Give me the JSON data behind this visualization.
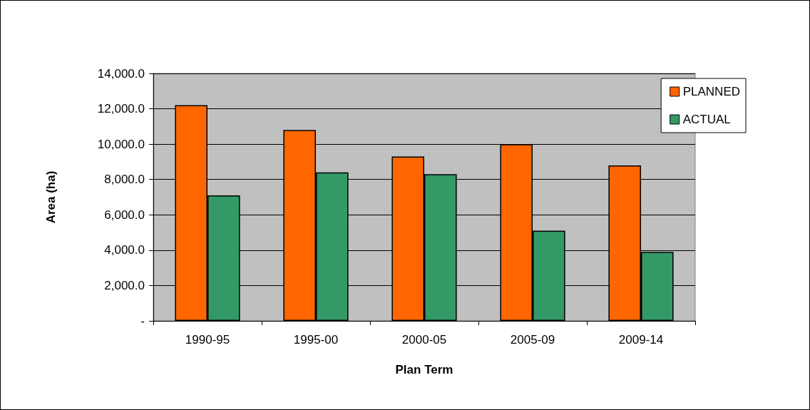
{
  "chart_data": {
    "type": "bar",
    "xlabel": "Plan Term",
    "ylabel": "Area (ha)",
    "categories": [
      "1990-95",
      "1995-00",
      "2000-05",
      "2005-09",
      "2009-14"
    ],
    "series": [
      {
        "name": "PLANNED",
        "color": "#ff6600",
        "values": [
          12200,
          10800,
          9300,
          10000,
          8800
        ]
      },
      {
        "name": "ACTUAL",
        "color": "#339966",
        "values": [
          7100,
          8400,
          8300,
          5100,
          3900
        ]
      }
    ],
    "ylim": [
      0,
      14000
    ],
    "yticks": [
      {
        "value": 0,
        "label": "-"
      },
      {
        "value": 2000,
        "label": "2,000.0"
      },
      {
        "value": 4000,
        "label": "4,000.0"
      },
      {
        "value": 6000,
        "label": "6,000.0"
      },
      {
        "value": 8000,
        "label": "8,000.0"
      },
      {
        "value": 10000,
        "label": "10,000.0"
      },
      {
        "value": 12000,
        "label": "12,000.0"
      },
      {
        "value": 14000,
        "label": "14,000.0"
      }
    ],
    "grid": "y",
    "legend": "top right"
  }
}
